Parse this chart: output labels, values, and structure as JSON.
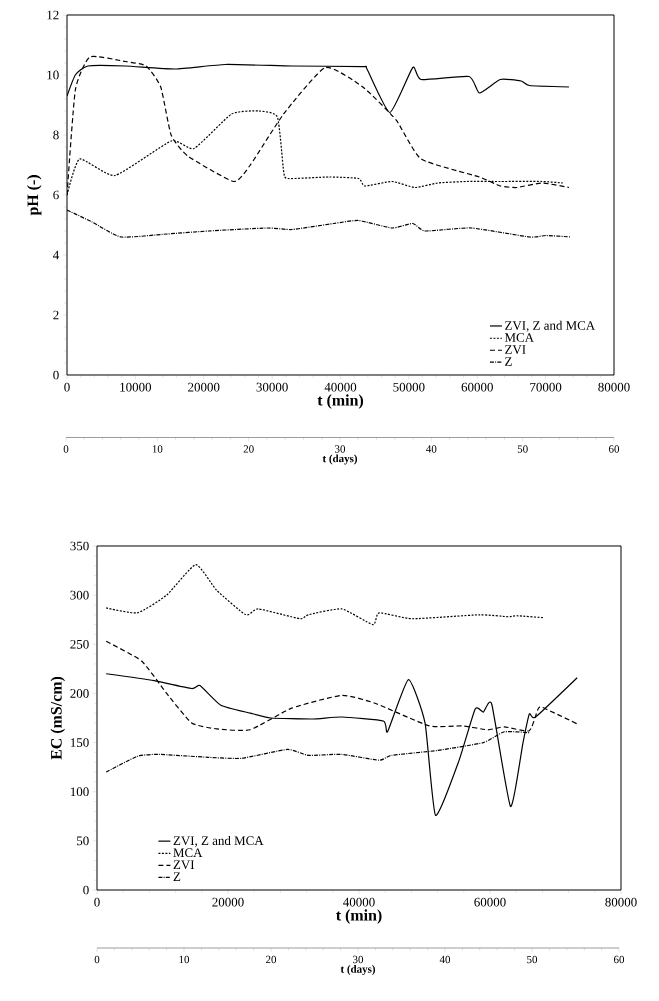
{
  "chart_data": [
    {
      "type": "line",
      "xlabel": "t (min)",
      "ylabel": "pH (-)",
      "xlim": [
        0,
        80000
      ],
      "xticks": [
        0,
        10000,
        20000,
        30000,
        40000,
        50000,
        60000,
        70000,
        80000
      ],
      "ylim": [
        0,
        12
      ],
      "yticks": [
        0,
        2,
        4,
        6,
        8,
        10,
        12
      ],
      "x2lim": [
        0,
        60
      ],
      "x2ticks": [
        0,
        10,
        20,
        30,
        40,
        50,
        60
      ],
      "x2label": "t (days)",
      "legend": "bottom right",
      "series": [
        {
          "name": "ZVI, Z and MCA",
          "color": "#000000",
          "line_style": "solid",
          "x": [
            0,
            1220,
            3050,
            8530,
            15840,
            23150,
            32900,
            43260,
            43870,
            47220,
            50570,
            51790,
            58800,
            60320,
            63370,
            66410,
            67630,
            73420
          ],
          "values": [
            9.3,
            10.0,
            10.3,
            10.3,
            10.2,
            10.35,
            10.3,
            10.28,
            10.2,
            8.75,
            10.25,
            9.85,
            9.95,
            9.4,
            9.85,
            9.8,
            9.65,
            9.6
          ]
        },
        {
          "name": "MCA",
          "color": "#000000",
          "line_style": "dotted",
          "x": [
            0,
            1830,
            7010,
            15230,
            18580,
            24070,
            28030,
            30770,
            31680,
            32290,
            38390,
            42650,
            43560,
            47530,
            50880,
            54230,
            58490,
            63370,
            69460,
            72510
          ],
          "values": [
            6.0,
            7.2,
            6.65,
            7.8,
            7.55,
            8.7,
            8.8,
            8.6,
            6.8,
            6.55,
            6.6,
            6.55,
            6.3,
            6.45,
            6.25,
            6.4,
            6.45,
            6.45,
            6.45,
            6.4
          ]
        },
        {
          "name": "ZVI",
          "color": "#000000",
          "line_style": "dashed",
          "x": [
            0,
            1220,
            3350,
            8530,
            11580,
            13710,
            15230,
            17670,
            24370,
            26810,
            31680,
            37780,
            43260,
            48130,
            51790,
            60320,
            63370,
            65800,
            69460,
            73420
          ],
          "values": [
            6.0,
            9.5,
            10.6,
            10.45,
            10.3,
            9.6,
            8.0,
            7.3,
            6.45,
            7.0,
            8.7,
            10.25,
            9.6,
            8.5,
            7.2,
            6.6,
            6.3,
            6.25,
            6.4,
            6.25
          ]
        },
        {
          "name": "Z",
          "color": "#000000",
          "line_style": "dashdot",
          "x": [
            0,
            3660,
            7920,
            14620,
            20720,
            29250,
            32900,
            39000,
            42650,
            47530,
            50570,
            52400,
            59100,
            67630,
            70070,
            73730
          ],
          "values": [
            5.5,
            5.1,
            4.6,
            4.7,
            4.8,
            4.9,
            4.85,
            5.05,
            5.15,
            4.9,
            5.05,
            4.8,
            4.9,
            4.6,
            4.65,
            4.6
          ]
        }
      ]
    },
    {
      "type": "line",
      "xlabel": "t (min)",
      "ylabel": "EC (mS/cm)",
      "xlim": [
        0,
        80000
      ],
      "xticks": [
        0,
        20000,
        40000,
        60000,
        80000
      ],
      "ylim": [
        0,
        350
      ],
      "yticks": [
        0,
        50,
        100,
        150,
        200,
        250,
        300,
        350
      ],
      "x2lim": [
        0,
        60
      ],
      "x2ticks": [
        0,
        10,
        20,
        30,
        40,
        50,
        60
      ],
      "x2label": "t (days)",
      "legend": "bottom left",
      "series": [
        {
          "name": "ZVI, Z and MCA",
          "color": "#000000",
          "line_style": "solid",
          "x": [
            1400,
            8720,
            14450,
            15720,
            18900,
            23360,
            26540,
            32900,
            37360,
            43720,
            44360,
            47540,
            50080,
            51680,
            55180,
            57720,
            58990,
            60270,
            63130,
            65040,
            66000,
            66950,
            73310
          ],
          "values": [
            220,
            213,
            205,
            208,
            188,
            180,
            175,
            174,
            176,
            172,
            161,
            214,
            170,
            76,
            130,
            184,
            181,
            189,
            85,
            150,
            179,
            176,
            216
          ]
        },
        {
          "name": "MCA",
          "color": "#000000",
          "line_style": "dotted",
          "x": [
            1400,
            6170,
            10630,
            15080,
            18260,
            22720,
            24630,
            30990,
            32260,
            37360,
            42130,
            43080,
            48170,
            58360,
            62810,
            64080,
            68220
          ],
          "values": [
            287,
            282,
            300,
            331,
            305,
            280,
            286,
            276,
            280,
            286,
            270,
            282,
            276,
            280,
            278,
            279,
            277
          ]
        },
        {
          "name": "ZVI",
          "color": "#000000",
          "line_style": "dashed",
          "x": [
            1400,
            6810,
            10630,
            14450,
            18260,
            23360,
            29720,
            37360,
            42450,
            50720,
            55810,
            59630,
            62180,
            65990,
            67270,
            67900,
            73310
          ],
          "values": [
            253,
            233,
            200,
            170,
            164,
            163,
            185,
            198,
            190,
            167,
            167,
            163,
            166,
            162,
            183,
            186,
            169
          ]
        },
        {
          "name": "Z",
          "color": "#000000",
          "line_style": "dashdot",
          "x": [
            1400,
            6170,
            9360,
            16990,
            22080,
            29080,
            32260,
            37360,
            43080,
            44990,
            51990,
            58990,
            62180,
            65990
          ],
          "values": [
            120,
            136,
            138,
            135,
            134,
            143,
            137,
            138,
            132,
            137,
            142,
            150,
            161,
            160
          ]
        }
      ]
    }
  ]
}
